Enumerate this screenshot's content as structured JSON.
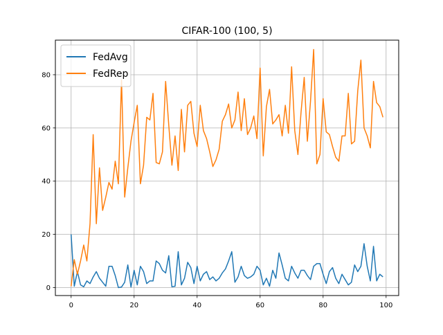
{
  "chart_data": {
    "type": "line",
    "title": "CIFAR-100 (100, 5)",
    "xlabel": "",
    "ylabel": "",
    "xlim": [
      -5,
      104
    ],
    "ylim": [
      -3,
      93
    ],
    "grid": true,
    "legend_position": "top-left",
    "x_ticks": [
      0,
      20,
      40,
      60,
      80,
      100
    ],
    "y_ticks": [
      0,
      20,
      40,
      60,
      80
    ],
    "x": [
      0,
      1,
      2,
      3,
      4,
      5,
      6,
      7,
      8,
      9,
      10,
      11,
      12,
      13,
      14,
      15,
      16,
      17,
      18,
      19,
      20,
      21,
      22,
      23,
      24,
      25,
      26,
      27,
      28,
      29,
      30,
      31,
      32,
      33,
      34,
      35,
      36,
      37,
      38,
      39,
      40,
      41,
      42,
      43,
      44,
      45,
      46,
      47,
      48,
      49,
      50,
      51,
      52,
      53,
      54,
      55,
      56,
      57,
      58,
      59,
      60,
      61,
      62,
      63,
      64,
      65,
      66,
      67,
      68,
      69,
      70,
      71,
      72,
      73,
      74,
      75,
      76,
      77,
      78,
      79,
      80,
      81,
      82,
      83,
      84,
      85,
      86,
      87,
      88,
      89,
      90,
      91,
      92,
      93,
      94,
      95,
      96,
      97,
      98,
      99
    ],
    "series": [
      {
        "name": "FedAvg",
        "color": "#1f77b4",
        "values": [
          20,
          0.5,
          6,
          1,
          0.3,
          2.5,
          1.5,
          4,
          6,
          3.5,
          2,
          0.5,
          8,
          8,
          4.5,
          0,
          0.2,
          2,
          8.5,
          0.2,
          6.5,
          1,
          8,
          6,
          1.5,
          2.5,
          2.5,
          10,
          9,
          6.5,
          5.5,
          12,
          0.3,
          0.5,
          13.5,
          1,
          3.5,
          9.5,
          7.5,
          1.5,
          8,
          2.5,
          5,
          6,
          3,
          4,
          2.5,
          3.5,
          5.5,
          7,
          10,
          13.5,
          2,
          4,
          8,
          4.5,
          3.5,
          4,
          5,
          8,
          6.5,
          1,
          3.5,
          0.5,
          6.5,
          3.5,
          13,
          8.5,
          3.5,
          2.5,
          8,
          5.5,
          3.5,
          6.5,
          6.5,
          4.5,
          3,
          8,
          9,
          9,
          5,
          1.5,
          6,
          7.5,
          3.5,
          1.5,
          5,
          3,
          1,
          2,
          8.5,
          6,
          8,
          16.5,
          8,
          2.5,
          15.5,
          2.5,
          5,
          4
        ]
      },
      {
        "name": "FedRep",
        "color": "#ff7f0e",
        "values": [
          0.5,
          10.5,
          5,
          10,
          16,
          10,
          24,
          57.5,
          24,
          45,
          29,
          34,
          39.5,
          37,
          47.5,
          39,
          78,
          34,
          45,
          55,
          62,
          68.5,
          39,
          46,
          64,
          63,
          73,
          47,
          46.5,
          51,
          77.5,
          61,
          46,
          57,
          44,
          67,
          51,
          68.5,
          70,
          58,
          53,
          68.5,
          59,
          56,
          51,
          45.5,
          48,
          52,
          62.5,
          65,
          69,
          60,
          63,
          73.5,
          59,
          71,
          57.5,
          60,
          64.5,
          56,
          82.5,
          49.5,
          68,
          74.5,
          61.5,
          63,
          65,
          57,
          68.5,
          58,
          83,
          59,
          50,
          66,
          79,
          55,
          70,
          89.5,
          46.5,
          50,
          71,
          58.5,
          57.5,
          53,
          49,
          47.5,
          57,
          57,
          73,
          54,
          55,
          74,
          85.5,
          60,
          57,
          52.5,
          77.5,
          69.5,
          68,
          64
        ]
      }
    ]
  }
}
